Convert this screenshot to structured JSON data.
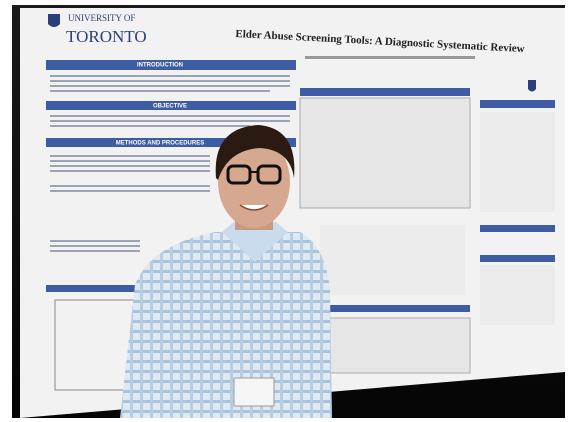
{
  "poster": {
    "institution_line1": "UNIVERSITY OF",
    "institution_line2": "TORONTO",
    "title": "Elder Abuse Screening Tools: A Diagnostic Systematic Review",
    "sections": [
      "INTRODUCTION",
      "OBJECTIVE",
      "METHODS AND PROCEDURES"
    ]
  }
}
